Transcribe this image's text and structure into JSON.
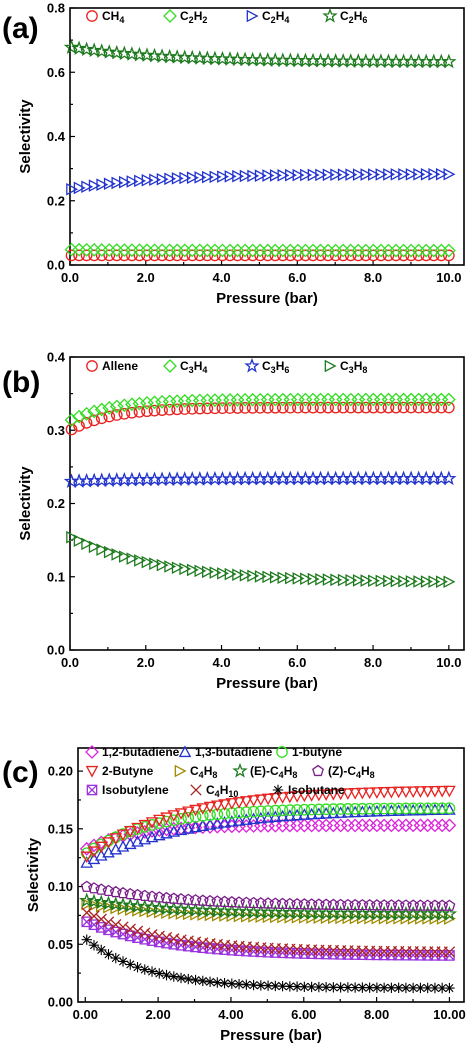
{
  "chart_data": [
    {
      "panel_label": "(a)",
      "type": "scatter",
      "xlabel": "Pressure (bar)",
      "ylabel": "Selectivity",
      "xlim": [
        0,
        10.4
      ],
      "ylim": [
        0,
        0.8
      ],
      "xticks": [
        "0.0",
        "2.0",
        "4.0",
        "6.0",
        "8.0",
        "10.0"
      ],
      "yticks": [
        "0.0",
        "0.2",
        "0.4",
        "0.6",
        "0.8"
      ],
      "legend_position": "top",
      "series": [
        {
          "name": "CH4",
          "legend": [
            "CH",
            "4",
            ""
          ],
          "marker": "circle",
          "color": "#e8221f",
          "start": 0.03,
          "end": 0.03,
          "k": 0.6
        },
        {
          "name": "C2H2",
          "legend": [
            "C",
            "2",
            "H",
            "2"
          ],
          "marker": "diamond",
          "color": "#33dd22",
          "start": 0.048,
          "end": 0.045,
          "k": 0.6
        },
        {
          "name": "C2H4",
          "legend": [
            "C",
            "2",
            "H",
            "4"
          ],
          "marker": "tri-right",
          "color": "#2233cc",
          "start": 0.235,
          "end": 0.283,
          "k": 0.45
        },
        {
          "name": "C2H6",
          "legend": [
            "C",
            "2",
            "H",
            "6"
          ],
          "marker": "star",
          "color": "#1e7a1e",
          "start": 0.678,
          "end": 0.632,
          "k": 0.4
        }
      ]
    },
    {
      "panel_label": "(b)",
      "type": "scatter",
      "xlabel": "Pressure (bar)",
      "ylabel": "Selectivity",
      "xlim": [
        0,
        10.4
      ],
      "ylim": [
        0,
        0.4
      ],
      "xticks": [
        "0.0",
        "2.0",
        "4.0",
        "6.0",
        "8.0",
        "10.0"
      ],
      "yticks": [
        "0.0",
        "0.1",
        "0.2",
        "0.3",
        "0.4"
      ],
      "legend_position": "top",
      "series": [
        {
          "name": "Allene",
          "legend": [
            "Allene"
          ],
          "marker": "circle",
          "color": "#e8221f",
          "start": 0.3,
          "end": 0.331,
          "k": 0.9
        },
        {
          "name": "C3H4",
          "legend": [
            "C",
            "3",
            "H",
            "4"
          ],
          "marker": "diamond",
          "color": "#33dd22",
          "start": 0.313,
          "end": 0.342,
          "k": 0.9
        },
        {
          "name": "C3H6",
          "legend": [
            "C",
            "3",
            "H",
            "6"
          ],
          "marker": "star",
          "color": "#2233cc",
          "start": 0.23,
          "end": 0.234,
          "k": 0.5
        },
        {
          "name": "C3H8",
          "legend": [
            "C",
            "3",
            "H",
            "8"
          ],
          "marker": "tri-right",
          "color": "#1e7a1e",
          "start": 0.155,
          "end": 0.092,
          "k": 0.4,
          "first_gap": true
        }
      ]
    },
    {
      "panel_label": "(c)",
      "type": "scatter",
      "xlabel": "Pressure (bar)",
      "ylabel": "Selectivity",
      "xlim": [
        -0.2,
        10.4
      ],
      "ylim": [
        0,
        0.22
      ],
      "xticks": [
        "0.00",
        "2.00",
        "4.00",
        "6.00",
        "8.00",
        "10.00"
      ],
      "yticks": [
        "0.00",
        "0.05",
        "0.10",
        "0.15",
        "0.20"
      ],
      "legend_position": "top",
      "series": [
        {
          "name": "1,2-butadiene",
          "legend": [
            "1,2-butadiene"
          ],
          "marker": "diamond",
          "color": "#dd22dd",
          "start": 0.132,
          "end": 0.153,
          "k": 0.8
        },
        {
          "name": "1,3-butadiene",
          "legend": [
            "1,3-butadiene"
          ],
          "marker": "tri-up",
          "color": "#2233cc",
          "start": 0.12,
          "end": 0.168,
          "k": 0.35
        },
        {
          "name": "1-butyne",
          "legend": [
            "1-butyne"
          ],
          "marker": "circle",
          "color": "#33dd22",
          "start": 0.128,
          "end": 0.168,
          "k": 0.55
        },
        {
          "name": "2-Butyne",
          "legend": [
            "2-Butyne"
          ],
          "marker": "tri-down",
          "color": "#e8221f",
          "start": 0.125,
          "end": 0.184,
          "k": 0.4
        },
        {
          "name": "C4H8",
          "legend": [
            "C",
            "4",
            "H",
            "8"
          ],
          "marker": "tri-right",
          "color": "#a08a00",
          "start": 0.085,
          "end": 0.072,
          "k": 0.4
        },
        {
          "name": "(E)-C4H8",
          "legend": [
            "(E)-C",
            "4",
            "H",
            "8"
          ],
          "marker": "star",
          "color": "#1e7a1e",
          "start": 0.088,
          "end": 0.076,
          "k": 0.4
        },
        {
          "name": "(Z)-C4H8",
          "legend": [
            "(Z)-C",
            "4",
            "H",
            "8"
          ],
          "marker": "pentagon",
          "color": "#7a1e8a",
          "start": 0.1,
          "end": 0.083,
          "k": 0.4
        },
        {
          "name": "Isobutylene",
          "legend": [
            "Isobutylene"
          ],
          "marker": "xsquare",
          "color": "#9a33dd",
          "start": 0.07,
          "end": 0.04,
          "k": 0.45
        },
        {
          "name": "C4H10",
          "legend": [
            "C",
            "4",
            "H",
            "10"
          ],
          "marker": "cross",
          "color": "#aa2222",
          "start": 0.078,
          "end": 0.043,
          "k": 0.45
        },
        {
          "name": "Isobutane",
          "legend": [
            "Isobutane"
          ],
          "marker": "asterisk",
          "color": "#000000",
          "start": 0.055,
          "end": 0.012,
          "k": 0.6
        }
      ]
    }
  ]
}
